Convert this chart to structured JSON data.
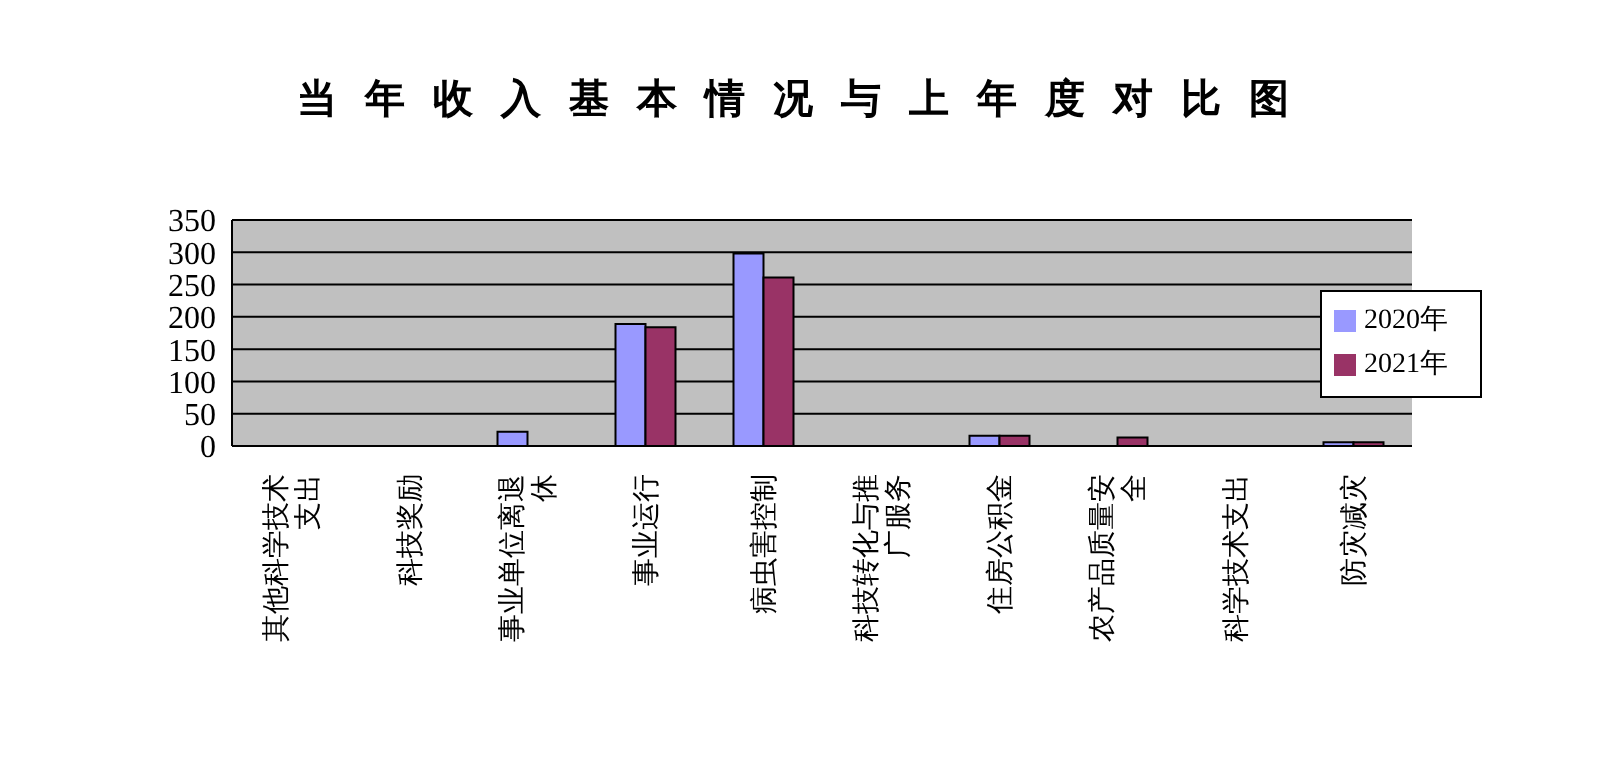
{
  "chart_data": {
    "type": "bar",
    "title": "当年收入基本情况与上年度对比图",
    "categories": [
      "其他科学技术支出",
      "科技奖励",
      "事业单位离退休",
      "事业运行",
      "病虫害控制",
      "科技转化与推广服务",
      "住房公积金",
      "农产品质量安全",
      "科学技术支出",
      "防灾减灾"
    ],
    "series": [
      {
        "name": "2020年",
        "color": "#9999ff",
        "values": [
          0,
          0,
          22,
          189,
          298,
          0,
          16,
          0,
          0,
          6
        ]
      },
      {
        "name": "2021年",
        "color": "#993366",
        "values": [
          0,
          0,
          0,
          184,
          261,
          0,
          16,
          13,
          0,
          6
        ]
      }
    ],
    "ylim": [
      0,
      350
    ],
    "yticks": [
      0,
      50,
      100,
      150,
      200,
      250,
      300,
      350
    ],
    "grid": "y",
    "legend": "right"
  }
}
